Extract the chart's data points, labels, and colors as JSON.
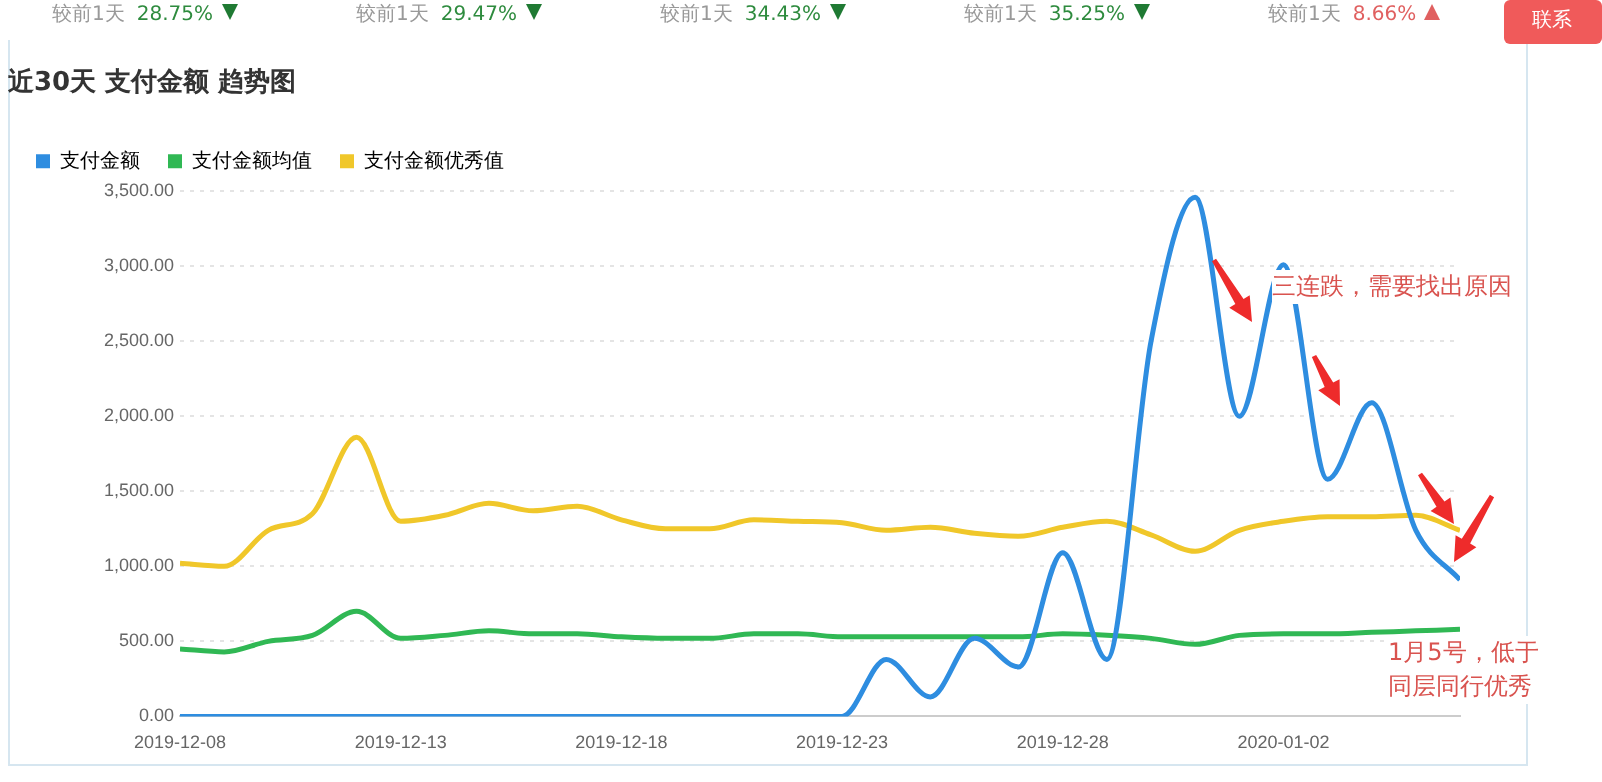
{
  "chart_data": {
    "type": "line",
    "title": "近30天 支付金额 趋势图",
    "x": [
      "2019-12-08",
      "2019-12-09",
      "2019-12-10",
      "2019-12-11",
      "2019-12-12",
      "2019-12-13",
      "2019-12-14",
      "2019-12-15",
      "2019-12-16",
      "2019-12-17",
      "2019-12-18",
      "2019-12-19",
      "2019-12-20",
      "2019-12-21",
      "2019-12-22",
      "2019-12-23",
      "2019-12-24",
      "2019-12-25",
      "2019-12-26",
      "2019-12-27",
      "2019-12-28",
      "2019-12-29",
      "2019-12-30",
      "2019-12-31",
      "2020-01-01",
      "2020-01-02",
      "2020-01-03",
      "2020-01-04",
      "2020-01-05",
      "2020-01-06"
    ],
    "series": [
      {
        "name": "支付金额",
        "color": "#2e8de0",
        "values": [
          0,
          0,
          0,
          0,
          0,
          0,
          0,
          0,
          0,
          0,
          0,
          0,
          0,
          0,
          0,
          0,
          380,
          130,
          520,
          330,
          1090,
          380,
          2500,
          3460,
          2000,
          3010,
          1580,
          2090,
          1240,
          910
        ]
      },
      {
        "name": "支付金额均值",
        "color": "#30b854",
        "values": [
          450,
          430,
          500,
          540,
          700,
          520,
          540,
          570,
          550,
          550,
          530,
          520,
          520,
          550,
          550,
          530,
          530,
          530,
          530,
          530,
          550,
          540,
          520,
          480,
          540,
          550,
          550,
          560,
          570,
          580
        ]
      },
      {
        "name": "支付金额优秀值",
        "color": "#f0c72a",
        "values": [
          1020,
          1000,
          1240,
          1350,
          1860,
          1300,
          1340,
          1420,
          1370,
          1400,
          1310,
          1250,
          1250,
          1310,
          1300,
          1290,
          1240,
          1260,
          1220,
          1200,
          1260,
          1300,
          1210,
          1100,
          1240,
          1300,
          1330,
          1330,
          1340,
          1240
        ]
      }
    ],
    "xlim": [
      "2019-12-08",
      "2020-01-06"
    ],
    "xticks": [
      "2019-12-08",
      "2019-12-13",
      "2019-12-18",
      "2019-12-23",
      "2019-12-28",
      "2020-01-02"
    ],
    "ylim": [
      0,
      3500
    ],
    "yticks": [
      {
        "value": 0,
        "label": "0.00"
      },
      {
        "value": 500,
        "label": "500.00"
      },
      {
        "value": 1000,
        "label": "1,000.00"
      },
      {
        "value": 1500,
        "label": "1,500.00"
      },
      {
        "value": 2000,
        "label": "2,000.00"
      },
      {
        "value": 2500,
        "label": "2,500.00"
      },
      {
        "value": 3000,
        "label": "3,000.00"
      },
      {
        "value": 3500,
        "label": "3,500.00"
      }
    ],
    "grid": "y",
    "legend": "top left",
    "marker": "none",
    "line_style": "solid",
    "annotations": [
      "三连跌，需要找出原因",
      "1月5号，低于同层同行优秀",
      "较前1天 28.75%",
      "较前1天 29.47%",
      "较前1天 34.43%",
      "较前1天 35.25%",
      "较前1天 8.66%",
      "联系"
    ]
  }
}
